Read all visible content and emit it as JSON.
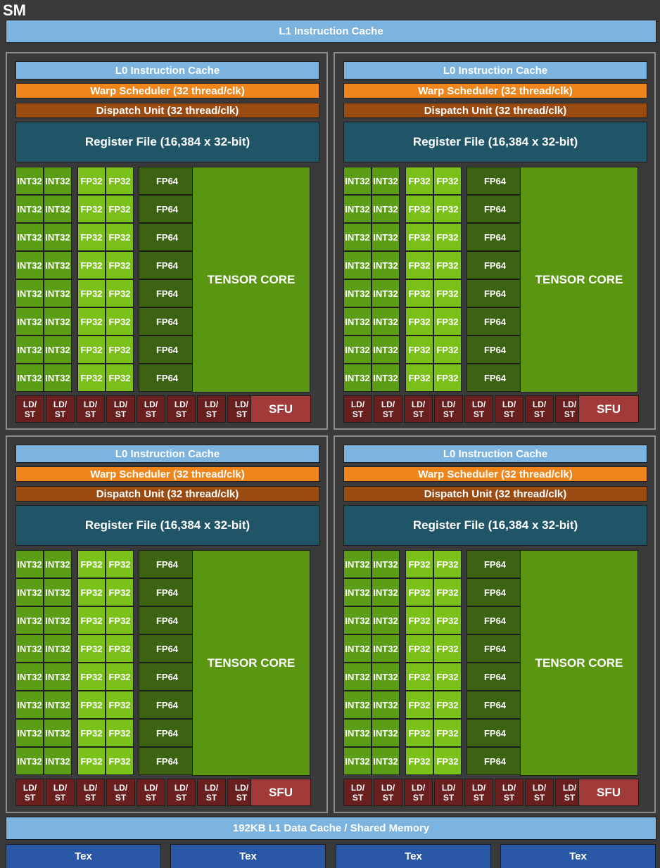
{
  "title": "SM",
  "l1_instruction_cache": "L1 Instruction Cache",
  "l1_data_cache": "192KB L1 Data Cache / Shared Memory",
  "tex_units": [
    "Tex",
    "Tex",
    "Tex",
    "Tex"
  ],
  "quadrant": {
    "l0_cache": "L0 Instruction Cache",
    "warp_scheduler": "Warp Scheduler (32 thread/clk)",
    "dispatch_unit": "Dispatch Unit (32 thread/clk)",
    "register_file": "Register File (16,384 x 32-bit)",
    "int32_label": "INT32",
    "fp32_label": "FP32",
    "fp64_label": "FP64",
    "tensor_core": "TENSOR CORE",
    "ldst_label": "LD/\nST",
    "sfu_label": "SFU",
    "rows": 8,
    "ldst_count": 8
  },
  "quadrant_count": 4,
  "colors": {
    "background": "#3a3a3a",
    "cache": "#7db4df",
    "warp_scheduler": "#f0861b",
    "dispatch_unit": "#9a4b12",
    "register_file": "#1f5567",
    "int32": "#5b9d17",
    "fp32": "#7cc11a",
    "fp64": "#3c6312",
    "tensor_core": "#5a9612",
    "ldst": "#6a1f1f",
    "sfu": "#a33a3a",
    "tex": "#2a57a6"
  }
}
